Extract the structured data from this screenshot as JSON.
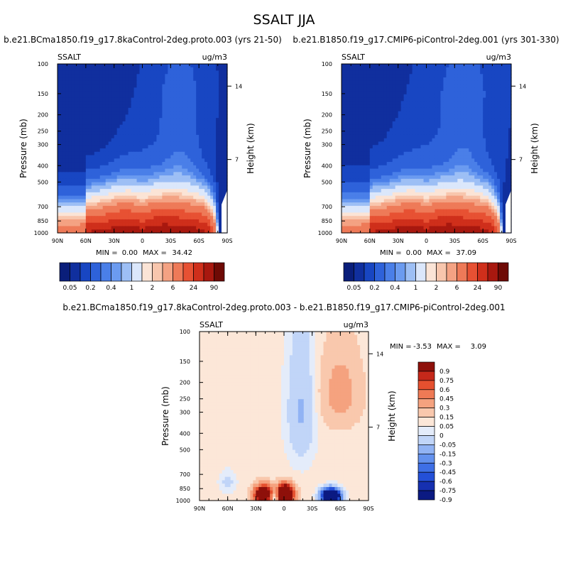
{
  "figure": {
    "title": "SSALT JJA"
  },
  "chart_data": [
    {
      "type": "heatmap",
      "title": "b.e21.BCma1850.f19_g17.8kaControl-2deg.proto.003 (yrs 21-50)",
      "variable": "SSALT",
      "units": "ug/m3",
      "ylabel": "Pressure (mb)",
      "ylabel_right": "Height (km)",
      "x_tick_labels": [
        "90N",
        "60N",
        "30N",
        "0",
        "30S",
        "60S",
        "90S"
      ],
      "y_tick_labels": [
        "100",
        "150",
        "200",
        "250",
        "300",
        "400",
        "500",
        "700",
        "850",
        "1000"
      ],
      "y_right_tick_labels": [
        "14",
        "7"
      ],
      "min_label": "MIN =",
      "min_value": "0.00",
      "max_label": "MAX =",
      "max_value": "34.42",
      "levels": [
        0.02,
        0.05,
        0.1,
        0.2,
        0.3,
        0.4,
        0.6,
        1,
        1.5,
        2,
        3,
        6,
        12,
        24,
        48,
        90
      ],
      "colorbar_labels": [
        "0.05",
        "0.2",
        "0.4",
        "1",
        "2",
        "6",
        "24",
        "90"
      ]
    },
    {
      "type": "heatmap",
      "title": "b.e21.B1850.f19_g17.CMIP6-piControl-2deg.001 (yrs 301-330)",
      "variable": "SSALT",
      "units": "ug/m3",
      "ylabel": "Pressure (mb)",
      "ylabel_right": "Height (km)",
      "x_tick_labels": [
        "90N",
        "60N",
        "30N",
        "0",
        "30S",
        "60S",
        "90S"
      ],
      "y_tick_labels": [
        "100",
        "150",
        "200",
        "250",
        "300",
        "400",
        "500",
        "700",
        "850",
        "1000"
      ],
      "y_right_tick_labels": [
        "14",
        "7"
      ],
      "min_label": "MIN =",
      "min_value": "0.00",
      "max_label": "MAX =",
      "max_value": "37.09",
      "levels": [
        0.02,
        0.05,
        0.1,
        0.2,
        0.3,
        0.4,
        0.6,
        1,
        1.5,
        2,
        3,
        6,
        12,
        24,
        48,
        90
      ],
      "colorbar_labels": [
        "0.05",
        "0.2",
        "0.4",
        "1",
        "2",
        "6",
        "24",
        "90"
      ]
    },
    {
      "type": "heatmap",
      "title": "b.e21.BCma1850.f19_g17.8kaControl-2deg.proto.003 - b.e21.B1850.f19_g17.CMIP6-piControl-2deg.001",
      "variable": "SSALT",
      "units": "ug/m3",
      "ylabel": "Pressure (mb)",
      "ylabel_right": "Height (km)",
      "x_tick_labels": [
        "90N",
        "60N",
        "30N",
        "0",
        "30S",
        "60S",
        "90S"
      ],
      "y_tick_labels": [
        "100",
        "150",
        "200",
        "250",
        "300",
        "400",
        "500",
        "700",
        "850",
        "1000"
      ],
      "y_right_tick_labels": [
        "14",
        "7"
      ],
      "min_label": "MIN =",
      "min_value": "-3.53",
      "max_label": "MAX =",
      "max_value": "3.09",
      "levels": [
        -0.9,
        -0.75,
        -0.6,
        -0.45,
        -0.3,
        -0.15,
        -0.05,
        0,
        0.05,
        0.15,
        0.3,
        0.45,
        0.6,
        0.75,
        0.9
      ],
      "colorbar_labels": [
        "0.9",
        "0.75",
        "0.6",
        "0.45",
        "0.3",
        "0.15",
        "0.05",
        "0",
        "-0.05",
        "-0.15",
        "-0.3",
        "-0.45",
        "-0.6",
        "-0.75",
        "-0.9"
      ]
    }
  ],
  "colors": {
    "abs_scale": [
      "#0a1e7a",
      "#102f9e",
      "#1846c2",
      "#2e62da",
      "#4a7fe8",
      "#6b9bf0",
      "#9dbff5",
      "#dbe7fb",
      "#fbe4d6",
      "#f8c6ad",
      "#f4a283",
      "#ee7a58",
      "#e75133",
      "#cf2f1b",
      "#a8180f",
      "#6e0a05"
    ],
    "diff_scale": [
      "#0b1a82",
      "#1630b0",
      "#2450d8",
      "#3e6fe6",
      "#6391ee",
      "#91b3f4",
      "#c1d5f8",
      "#e4ecfa",
      "#fce7d8",
      "#f9c8ad",
      "#f5a27f",
      "#ef7a55",
      "#e5502f",
      "#c5281a",
      "#8e100a"
    ]
  }
}
